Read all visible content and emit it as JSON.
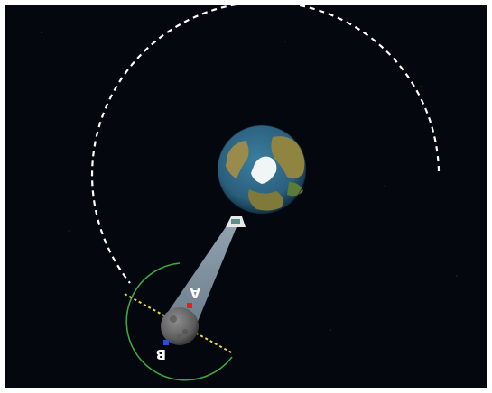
{
  "scene": {
    "background_color": "#04070d",
    "frame_color": "#ffffff",
    "earth": {
      "ocean_color": "#2f6a8a",
      "land_color": "#9a8a4c",
      "ice_color": "#f2f5f6"
    },
    "moon": {
      "color": "#6b6b6b"
    },
    "orbit": {
      "color": "#ffffff",
      "style": "dashed"
    },
    "view_cone": {
      "color": "#9fb4c8"
    },
    "terminator_line": {
      "color": "#e6d640",
      "style": "dotted"
    },
    "arc": {
      "color": "#3ca642"
    },
    "points": [
      {
        "label": "A",
        "color": "#e02020"
      },
      {
        "label": "B",
        "color": "#2050e0"
      }
    ],
    "observer": {
      "icon": "camera-icon",
      "color": "#e8e8e8"
    }
  }
}
